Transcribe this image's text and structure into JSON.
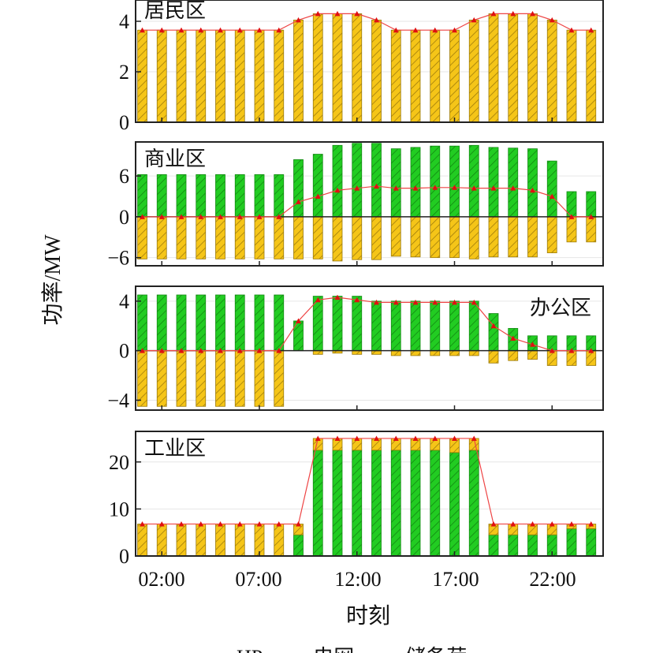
{
  "chart_data": {
    "type": "bar",
    "hours": [
      1,
      2,
      3,
      4,
      5,
      6,
      7,
      8,
      9,
      10,
      11,
      12,
      13,
      14,
      15,
      16,
      17,
      18,
      19,
      20,
      21,
      22,
      23,
      24
    ],
    "x_tick_labels": [
      "02:00",
      "07:00",
      "12:00",
      "17:00",
      "22:00"
    ],
    "x_tick_hours": [
      2,
      7,
      12,
      17,
      22
    ],
    "xlabel": "时刻",
    "ylabel": "功率/MW",
    "legend_partial_text": "HP          电网          储备荷",
    "colors": {
      "green": "#22cc22",
      "yellow": "#f5c518",
      "line": "#ee4444",
      "marker": "#e01010"
    },
    "panels": [
      {
        "region": "居民区",
        "label_pos": "top-left",
        "ylim": [
          0,
          5.0
        ],
        "yticks": [
          0,
          2,
          4
        ],
        "green": [
          0,
          0,
          0,
          0,
          0,
          0,
          0,
          0,
          0,
          0,
          0,
          0,
          0,
          0,
          0,
          0,
          0,
          0,
          0,
          0,
          0,
          0,
          0,
          0
        ],
        "yellow": [
          3.65,
          3.65,
          3.65,
          3.65,
          3.65,
          3.65,
          3.65,
          3.65,
          4.05,
          4.3,
          4.3,
          4.3,
          4.05,
          3.65,
          3.65,
          3.65,
          3.65,
          4.05,
          4.3,
          4.3,
          4.3,
          4.05,
          3.65,
          3.65
        ],
        "line": [
          3.65,
          3.65,
          3.65,
          3.65,
          3.65,
          3.65,
          3.65,
          3.65,
          4.05,
          4.3,
          4.3,
          4.3,
          4.05,
          3.65,
          3.65,
          3.65,
          3.65,
          4.05,
          4.3,
          4.3,
          4.3,
          4.05,
          3.65,
          3.65
        ]
      },
      {
        "region": "商业区",
        "label_pos": "top-left",
        "ylim": [
          -7.2,
          11
        ],
        "yticks": [
          -6,
          0,
          6
        ],
        "green": [
          6.2,
          6.2,
          6.2,
          6.2,
          6.2,
          6.2,
          6.2,
          6.2,
          8.4,
          9.2,
          10.5,
          10.8,
          10.8,
          10.0,
          10.2,
          10.4,
          10.4,
          10.5,
          10.2,
          10.1,
          10.0,
          8.2,
          3.7,
          3.7
        ],
        "yellow": [
          -6.2,
          -6.2,
          -6.2,
          -6.2,
          -6.2,
          -6.2,
          -6.2,
          -6.2,
          -6.2,
          -6.2,
          -6.5,
          -6.3,
          -6.3,
          -5.8,
          -5.9,
          -6.0,
          -6.0,
          -6.2,
          -5.9,
          -5.9,
          -5.9,
          -5.3,
          -3.7,
          -3.7
        ],
        "line": [
          0,
          0,
          0,
          0,
          0,
          0,
          0,
          0,
          2.2,
          3.0,
          3.9,
          4.2,
          4.5,
          4.2,
          4.2,
          4.3,
          4.3,
          4.2,
          4.2,
          4.2,
          3.9,
          3.0,
          0,
          0
        ]
      },
      {
        "region": "办公区",
        "label_pos": "right",
        "ylim": [
          -4.8,
          5.2
        ],
        "yticks": [
          -4,
          0,
          4
        ],
        "green": [
          4.5,
          4.5,
          4.5,
          4.5,
          4.5,
          4.5,
          4.5,
          4.5,
          2.4,
          4.4,
          4.4,
          4.4,
          4.0,
          4.0,
          4.0,
          4.0,
          4.0,
          4.0,
          3.0,
          1.8,
          1.2,
          1.2,
          1.2,
          1.2
        ],
        "yellow": [
          -4.5,
          -4.5,
          -4.5,
          -4.5,
          -4.5,
          -4.5,
          -4.5,
          -4.5,
          0,
          -0.3,
          -0.2,
          -0.3,
          -0.3,
          -0.4,
          -0.4,
          -0.4,
          -0.4,
          -0.4,
          -1.0,
          -0.8,
          -0.7,
          -1.2,
          -1.2,
          -1.2
        ],
        "line": [
          0,
          0,
          0,
          0,
          0,
          0,
          0,
          0,
          2.4,
          4.1,
          4.3,
          4.1,
          3.9,
          3.9,
          3.9,
          3.9,
          3.9,
          3.9,
          2.0,
          1.0,
          0.5,
          0,
          0,
          0
        ]
      },
      {
        "region": "工业区",
        "label_pos": "top-left",
        "ylim": [
          0,
          26.5
        ],
        "yticks": [
          0,
          10,
          20
        ],
        "green": [
          0,
          0,
          0,
          0,
          0,
          0,
          0,
          0,
          4.5,
          22.5,
          22.5,
          22.5,
          22.5,
          22.5,
          22.5,
          22.5,
          22.0,
          22.5,
          4.5,
          4.5,
          4.5,
          4.5,
          5.8,
          5.8
        ],
        "yellow": [
          6.8,
          6.8,
          6.8,
          6.8,
          6.8,
          6.8,
          6.8,
          6.8,
          2.3,
          2.5,
          2.5,
          2.5,
          2.5,
          2.5,
          2.5,
          2.5,
          3.0,
          2.5,
          2.3,
          2.3,
          2.3,
          2.3,
          1.0,
          1.0
        ],
        "line": [
          6.8,
          6.8,
          6.8,
          6.8,
          6.8,
          6.8,
          6.8,
          6.8,
          6.8,
          25.0,
          25.0,
          25.0,
          25.0,
          25.0,
          25.0,
          25.0,
          25.0,
          25.0,
          6.8,
          6.8,
          6.8,
          6.8,
          6.8,
          6.8
        ]
      }
    ]
  }
}
